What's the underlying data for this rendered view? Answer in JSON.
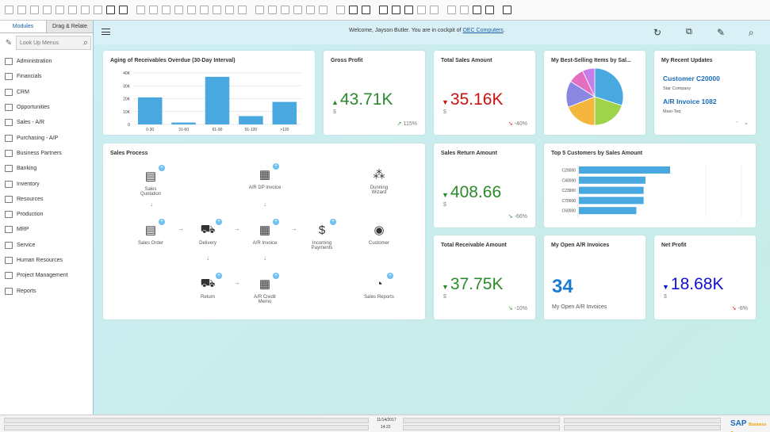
{
  "sidebar": {
    "tabs": [
      "Modules",
      "Drag & Relate"
    ],
    "search_placeholder": "Look Up Menus",
    "items": [
      {
        "label": "Administration"
      },
      {
        "label": "Financials"
      },
      {
        "label": "CRM"
      },
      {
        "label": "Opportunities"
      },
      {
        "label": "Sales - A/R"
      },
      {
        "label": "Purchasing - A/P"
      },
      {
        "label": "Business Partners"
      },
      {
        "label": "Banking"
      },
      {
        "label": "Inventory"
      },
      {
        "label": "Resources"
      },
      {
        "label": "Production"
      },
      {
        "label": "MRP"
      },
      {
        "label": "Service"
      },
      {
        "label": "Human Resources"
      },
      {
        "label": "Project Management"
      },
      {
        "label": "Reports"
      }
    ]
  },
  "header": {
    "welcome_prefix": "Welcome, Jayson Butler. You are in cockpit of ",
    "company": "OEC Computers",
    "welcome_suffix": "."
  },
  "aging": {
    "title": "Aging of Receivables Overdue (30-Day Interval)",
    "bar_color": "#4aa8e0",
    "chart_data": {
      "type": "bar",
      "categories": [
        "0-30",
        "31-60",
        "61-90",
        "91-120",
        ">120"
      ],
      "values": [
        21000,
        1500,
        37000,
        6500,
        17500
      ],
      "yticks": [
        "40K",
        "30K",
        "20K",
        "10K",
        "0"
      ],
      "ylim": [
        0,
        40000
      ],
      "grid": true
    }
  },
  "gross_profit": {
    "title": "Gross Profit",
    "value": "43.71",
    "unit": "K",
    "currency": "$",
    "trend": "115%",
    "direction": "up"
  },
  "total_sales": {
    "title": "Total Sales Amount",
    "value": "35.16",
    "unit": "K",
    "currency": "$",
    "trend": "-40%",
    "direction": "down"
  },
  "best_selling": {
    "title": "My Best-Selling Items by Sal...",
    "chart_data": {
      "type": "pie",
      "values": [
        30,
        20,
        19,
        15,
        9,
        7
      ],
      "colors": [
        "#4aa8e0",
        "#9fd34a",
        "#f4b63c",
        "#8a87e3",
        "#e36fc0",
        "#c67fe8"
      ]
    }
  },
  "recent_updates": {
    "title": "My Recent Updates",
    "items": [
      {
        "label": "Customer C20000",
        "sub": "Star Company"
      },
      {
        "label": "A/R Invoice 1082",
        "sub": "Maxi-Teq"
      }
    ]
  },
  "sales_process": {
    "title": "Sales Process",
    "nodes": {
      "sales_quotation": "Sales Quotation",
      "ar_dp_invoice": "A/R DP Invoice",
      "dunning_wizard": "Dunning Wizard",
      "sales_order": "Sales Order",
      "delivery": "Delivery",
      "ar_invoice": "A/R Invoice",
      "incoming_payments": "Incoming Payments",
      "customer": "Customer",
      "return": "Return",
      "ar_credit_memo": "A/R Credit Memo",
      "sales_reports": "Sales Reports"
    }
  },
  "sales_return": {
    "title": "Sales Return Amount",
    "value": "408.66",
    "unit": "",
    "currency": "$",
    "trend": "-66%",
    "direction": "down"
  },
  "top5": {
    "title": "Top 5 Customers by Sales Amount",
    "bar_color": "#4aa8e0",
    "chart_data": {
      "type": "bar",
      "orientation": "horizontal",
      "categories": [
        "C20000",
        "C40000",
        "C23900",
        "C70000",
        "C60000"
      ],
      "values": [
        100,
        73,
        71,
        71,
        63
      ]
    }
  },
  "total_receivable": {
    "title": "Total Receivable Amount",
    "value": "37.75",
    "unit": "K",
    "currency": "$",
    "trend": "-10%",
    "direction": "down"
  },
  "open_ar": {
    "title": "My Open A/R Invoices",
    "value": "34",
    "caption": "My Open A/R Invoices"
  },
  "net_profit": {
    "title": "Net Profit",
    "value": "18.68",
    "unit": "K",
    "currency": "$",
    "trend": "-8%",
    "direction": "down"
  },
  "status_bar": {
    "date": "11/14/2017",
    "time": "14:22",
    "brand": "SAP",
    "brand_sub": "Business One"
  }
}
